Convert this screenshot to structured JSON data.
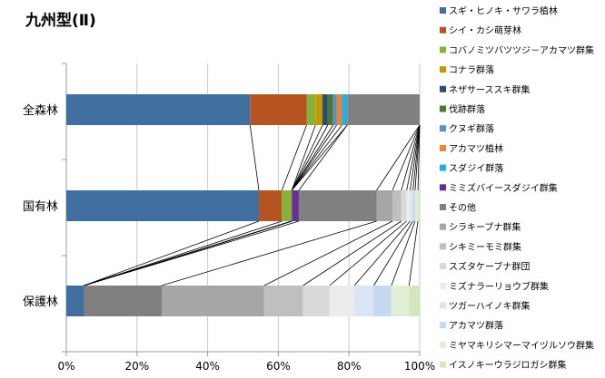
{
  "chart_data": {
    "type": "bar",
    "orientation": "horizontal",
    "stacked": "percent",
    "title": "九州型(Ⅱ)",
    "categories": [
      "全森林",
      "国有林",
      "保護林"
    ],
    "x_ticks": [
      "0%",
      "20%",
      "40%",
      "60%",
      "80%",
      "100%"
    ],
    "xlim": [
      0,
      100
    ],
    "grid": true,
    "legend_position": "right",
    "series": [
      {
        "name": "スギ・ヒノキ・サワラ植林",
        "color": "#3f6e9f",
        "values": [
          52,
          54.5,
          5
        ]
      },
      {
        "name": "シイ・カシ萌芽林",
        "color": "#b55420",
        "values": [
          16,
          6.5,
          0
        ]
      },
      {
        "name": "コバノミツバツツジ－アカマツ群集",
        "color": "#86b23c",
        "values": [
          2.5,
          2.8,
          0
        ]
      },
      {
        "name": "コナラ群落",
        "color": "#c49a00",
        "values": [
          2,
          0,
          0
        ]
      },
      {
        "name": "ネザサーススキ群集",
        "color": "#2b4c75",
        "values": [
          1.5,
          0,
          0
        ]
      },
      {
        "name": "伐跡群落",
        "color": "#4a7a2e",
        "values": [
          1.5,
          0,
          0
        ]
      },
      {
        "name": "クヌギ群落",
        "color": "#5a8fcc",
        "values": [
          1,
          0,
          0
        ]
      },
      {
        "name": "アカマツ植林",
        "color": "#e8843c",
        "values": [
          1.5,
          0,
          0
        ]
      },
      {
        "name": "スダジイ群落",
        "color": "#1fb0e6",
        "values": [
          1.5,
          0,
          0
        ]
      },
      {
        "name": "ミミズバイースダジイ群集",
        "color": "#6a2f96",
        "values": [
          0,
          2,
          0
        ]
      },
      {
        "name": "その他",
        "color": "#808080",
        "values": [
          20.5,
          22,
          22
        ]
      },
      {
        "name": "シラキーブナ群集",
        "color": "#a6a6a6",
        "values": [
          0,
          4.5,
          29
        ]
      },
      {
        "name": "シキミーモミ群集",
        "color": "#bfbfbf",
        "values": [
          0,
          2.5,
          11
        ]
      },
      {
        "name": "スズタケーブナ群団",
        "color": "#d9d9d9",
        "values": [
          0,
          1.5,
          7.5
        ]
      },
      {
        "name": "ミズナラーリョウブ群集",
        "color": "#ececec",
        "values": [
          0,
          1,
          7
        ]
      },
      {
        "name": "ツガーハイノキ群集",
        "color": "#dbe6f4",
        "values": [
          0,
          0.8,
          5.5
        ]
      },
      {
        "name": "アカマツ群落",
        "color": "#c5daf0",
        "values": [
          0,
          0.6,
          5
        ]
      },
      {
        "name": "ミヤマキリシマーマイヅルソウ群集",
        "color": "#e3efd4",
        "values": [
          0,
          0.8,
          5
        ]
      },
      {
        "name": "イスノキーウラジロガシ群集",
        "color": "#d4e8c0",
        "values": [
          0,
          0.5,
          3
        ]
      }
    ]
  }
}
